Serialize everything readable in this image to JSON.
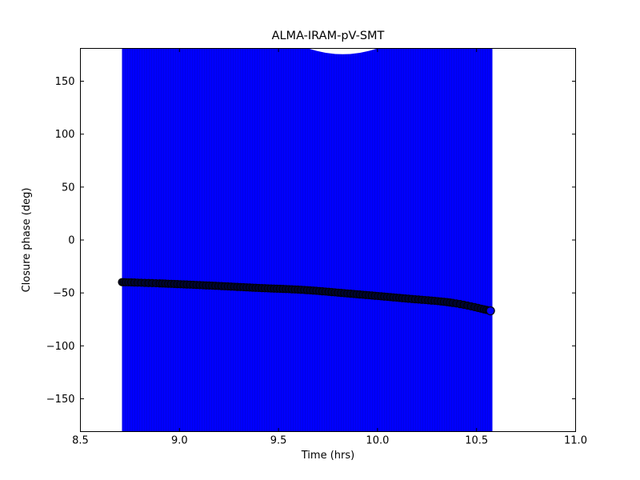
{
  "figure": {
    "background": "#ffffff"
  },
  "chart_data": {
    "type": "scatter",
    "title": "ALMA-IRAM-pV-SMT",
    "xlabel": "Time (hrs)",
    "ylabel": "Closure phase (deg)",
    "xlim": [
      8.5,
      11.0
    ],
    "ylim": [
      -181,
      181
    ],
    "xticks": [
      8.5,
      9.0,
      9.5,
      10.0,
      10.5,
      11.0
    ],
    "xtick_labels": [
      "8.5",
      "9.0",
      "9.5",
      "10.0",
      "10.5",
      "11.0"
    ],
    "yticks": [
      -150,
      -100,
      -50,
      0,
      50,
      100,
      150
    ],
    "ytick_labels": [
      "−150",
      "−100",
      "−50",
      "0",
      "50",
      "100",
      "150"
    ],
    "grid": false,
    "legend": null,
    "frame_color": "#000000",
    "series": [
      {
        "name": "closure phase vs time",
        "marker": "circle",
        "marker_face_color": "#0000ff",
        "marker_edge_color": "#000000",
        "dense_overlap_color": "#00052e",
        "points": [
          [
            8.71,
            -39.8
          ],
          [
            8.9,
            -41.0
          ],
          [
            9.15,
            -43.0
          ],
          [
            9.4,
            -45.3
          ],
          [
            9.63,
            -47.2
          ],
          [
            9.88,
            -51.0
          ],
          [
            10.14,
            -55.2
          ],
          [
            10.38,
            -59.4
          ],
          [
            10.57,
            -66.9
          ]
        ]
      }
    ],
    "errorbars": {
      "color": "#0000ff",
      "stripe_color": "#0202e2",
      "x_start": 8.71,
      "x_end": 10.58,
      "extent": "vertical error bars span entire visible y-range (clipped by axes)",
      "top_notch": {
        "x_start": 9.65,
        "x_end": 10.0,
        "center": 9.82,
        "depth_deg": 5.5
      }
    }
  }
}
